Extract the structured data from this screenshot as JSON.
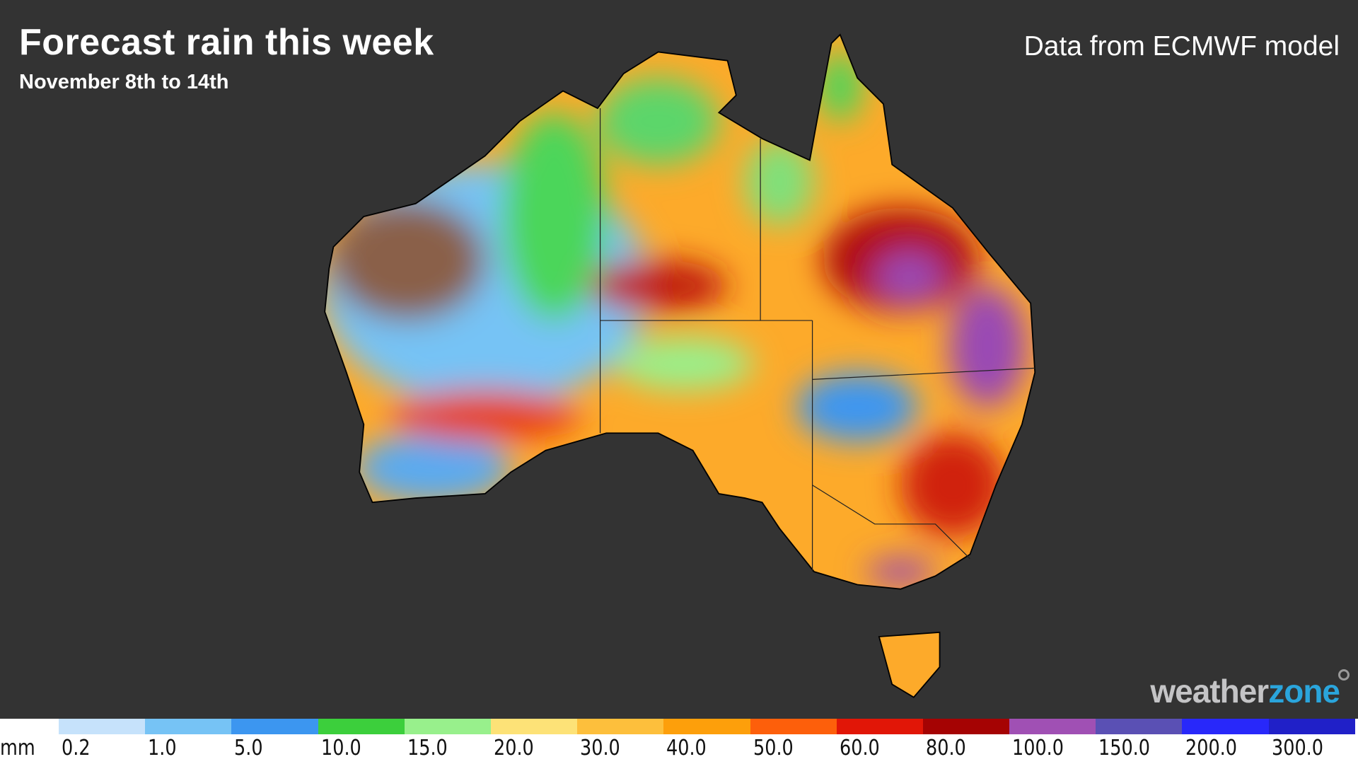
{
  "header": {
    "title": "Forecast rain this week",
    "subtitle": "November 8th to 14th",
    "source": "Data from ECMWF model"
  },
  "logo": {
    "part1": "weather",
    "part2": "zone",
    "colors": {
      "weather": "#c4c4c6",
      "zone": "#2aa5dc"
    }
  },
  "legend": {
    "unit": "mm",
    "labels": [
      "0.2",
      "1.0",
      "5.0",
      "10.0",
      "15.0",
      "20.0",
      "30.0",
      "40.0",
      "50.0",
      "60.0",
      "80.0",
      "100.0",
      "150.0",
      "200.0",
      "300.0"
    ],
    "colors": [
      "#c6e2fb",
      "#76c3f5",
      "#3c96f0",
      "#3ccf3c",
      "#98f08c",
      "#fde277",
      "#fdbf3c",
      "#fd9f0b",
      "#fd5f0b",
      "#e11607",
      "#a50303",
      "#a050b4",
      "#5a50b4",
      "#2828fa",
      "#2020c8"
    ]
  }
}
